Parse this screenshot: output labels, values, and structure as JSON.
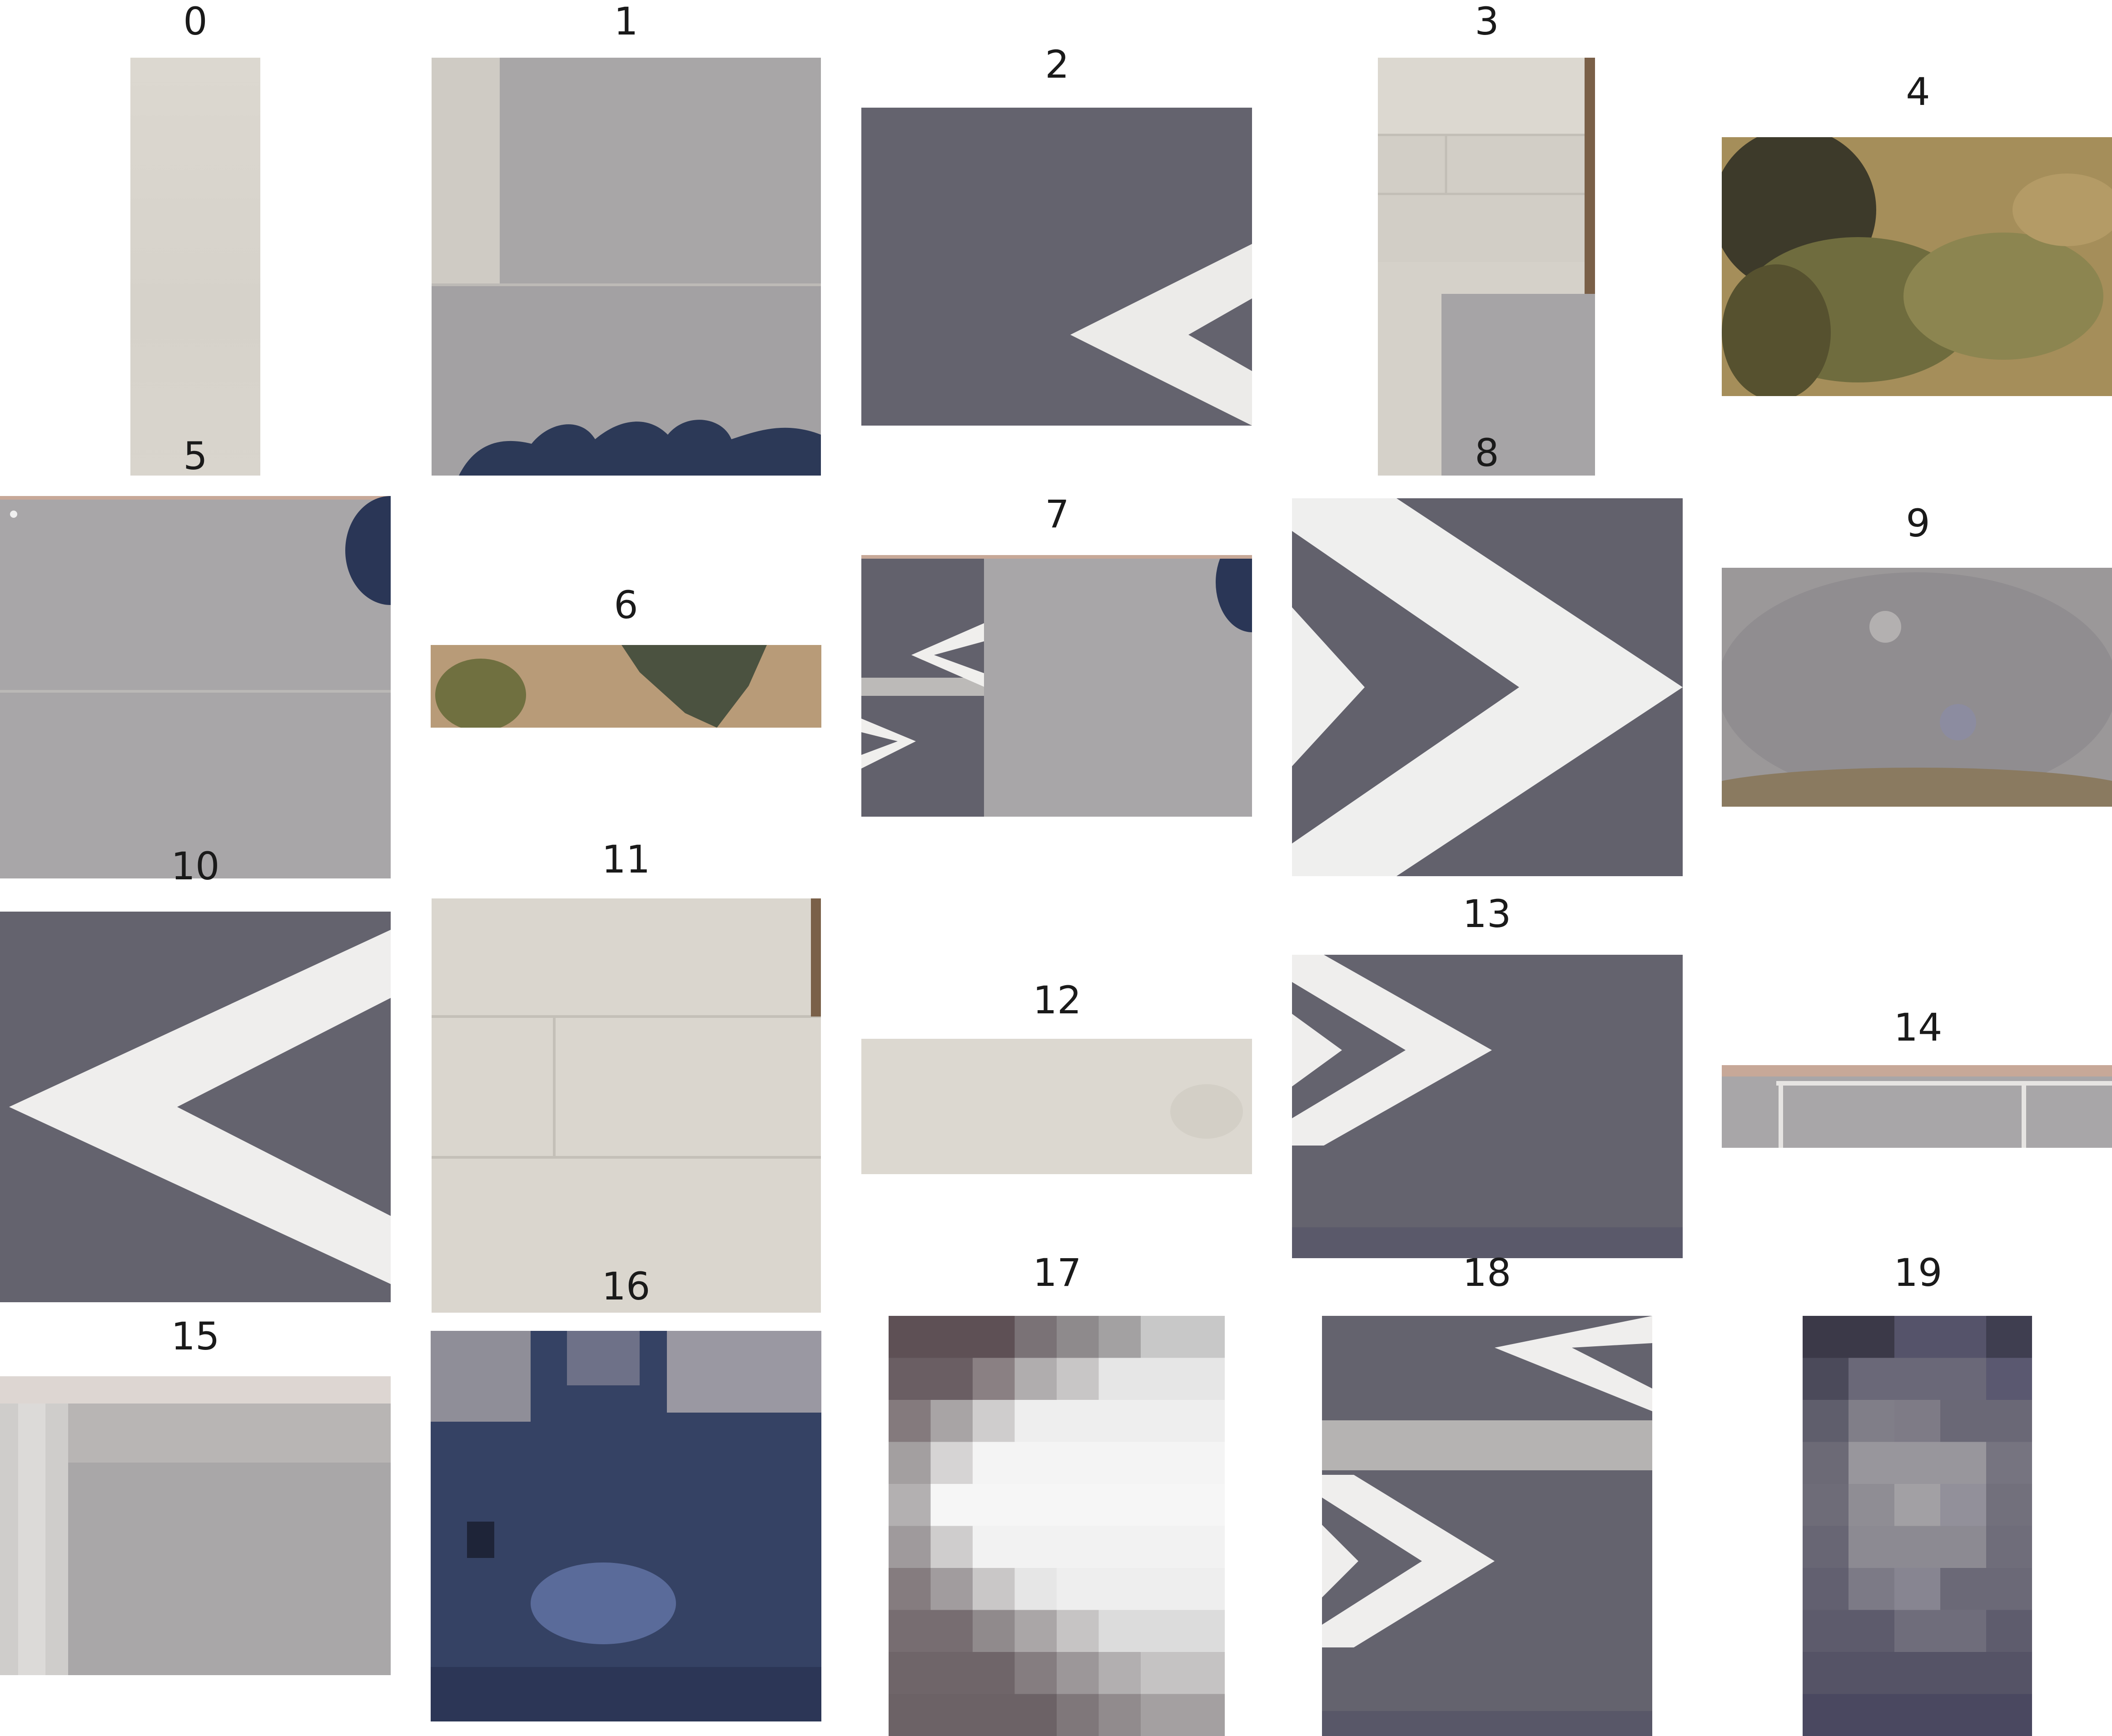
{
  "tiles": [
    {
      "label": "0"
    },
    {
      "label": "1"
    },
    {
      "label": "2"
    },
    {
      "label": "3"
    },
    {
      "label": "4"
    },
    {
      "label": "5"
    },
    {
      "label": "6"
    },
    {
      "label": "7"
    },
    {
      "label": "8"
    },
    {
      "label": "9"
    },
    {
      "label": "10"
    },
    {
      "label": "11"
    },
    {
      "label": "12"
    },
    {
      "label": "13"
    },
    {
      "label": "14"
    },
    {
      "label": "15"
    },
    {
      "label": "16"
    },
    {
      "label": "17"
    },
    {
      "label": "18"
    },
    {
      "label": "19"
    }
  ]
}
